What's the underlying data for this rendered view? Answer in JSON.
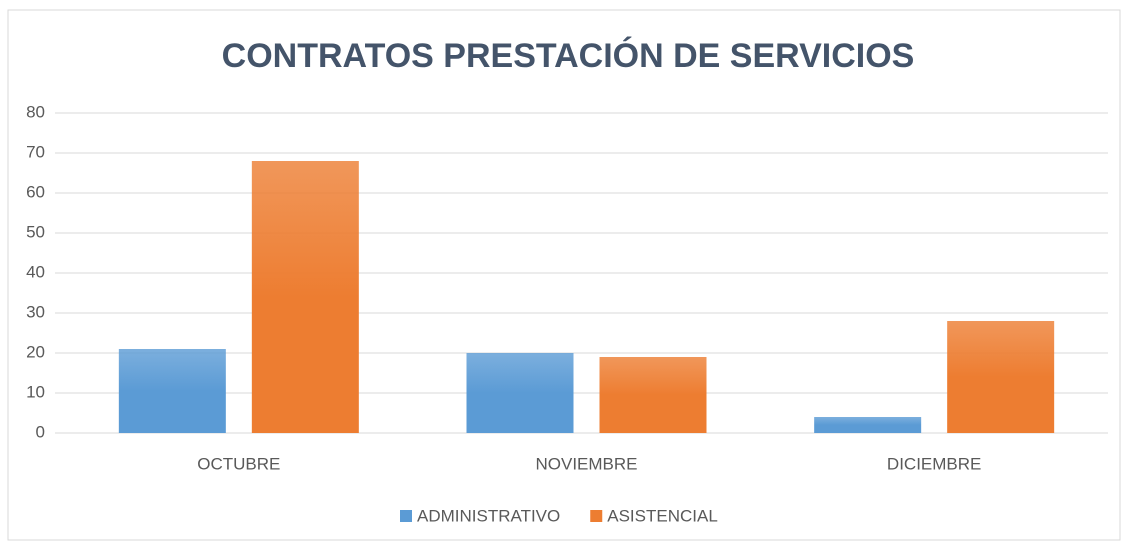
{
  "chart_data": {
    "type": "bar",
    "title": "CONTRATOS PRESTACIÓN DE SERVICIOS",
    "categories": [
      "OCTUBRE",
      "NOVIEMBRE",
      "DICIEMBRE"
    ],
    "series": [
      {
        "name": "ADMINISTRATIVO",
        "color": "#5b9bd5",
        "values": [
          21,
          20,
          4
        ]
      },
      {
        "name": "ASISTENCIAL",
        "color": "#ed7d31",
        "values": [
          68,
          19,
          28
        ]
      }
    ],
    "ylim": [
      0,
      80
    ],
    "yticks": [
      0,
      10,
      20,
      30,
      40,
      50,
      60,
      70,
      80
    ],
    "grid": true,
    "legend": "bottom"
  }
}
